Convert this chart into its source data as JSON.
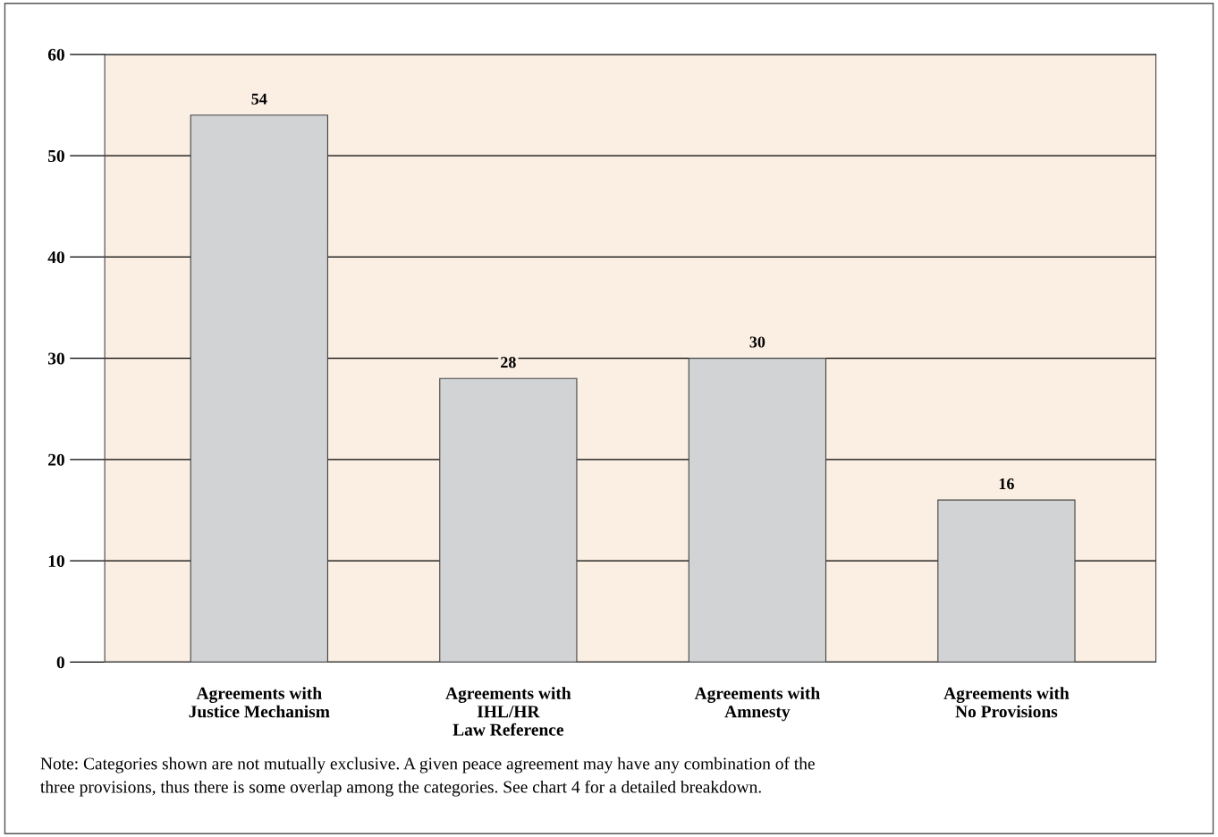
{
  "chart_data": {
    "type": "bar",
    "categories": [
      "Agreements with\nJustice Mechanism",
      "Agreements with\nIHL/HR\nLaw Reference",
      "Agreements with\nAmnesty",
      "Agreements with\nNo Provisions"
    ],
    "values": [
      54,
      28,
      30,
      16
    ],
    "color": "#d1d3d4",
    "data_labels": true,
    "ylim": [
      0,
      60
    ],
    "yticks": [
      0,
      10,
      20,
      30,
      40,
      50,
      60
    ],
    "grid": "y",
    "legend": false,
    "annotations": [
      "Note: Categories shown are not mutually exclusive. A given peace agreement may have any combination of the\nthree provisions, thus there is some overlap among the categories. See chart 4 for a detailed breakdown."
    ]
  }
}
